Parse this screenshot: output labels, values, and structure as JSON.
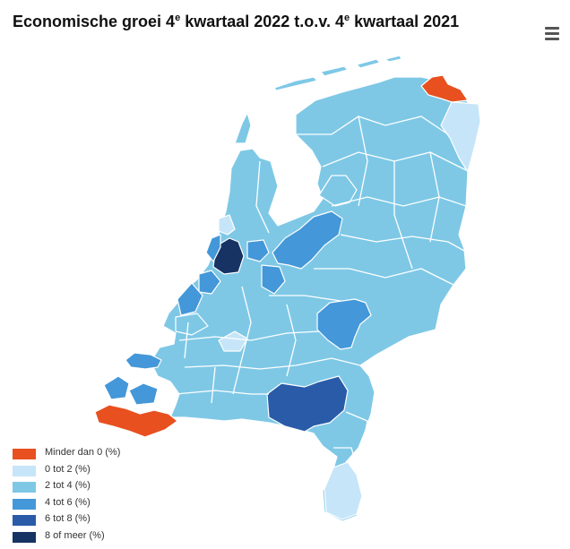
{
  "title": {
    "part1": "Economische groei 4",
    "sup1": "e",
    "part2": " kwartaal 2022 t.o.v. 4",
    "sup2": "e",
    "part3": " kwartaal 2021"
  },
  "menu_icon": "hamburger-menu-icon",
  "colors": {
    "minder_dan_0": "#e8501f",
    "0_tot_2": "#c6e5f8",
    "2_tot_4": "#7ec8e6",
    "4_tot_6": "#4497d8",
    "6_tot_8": "#2a5ba8",
    "8_of_meer": "#173364",
    "border": "#ffffff"
  },
  "legend": [
    {
      "label": "Minder dan 0 (%)",
      "color": "#e8501f"
    },
    {
      "label": "0 tot 2 (%)",
      "color": "#c6e5f8"
    },
    {
      "label": "2 tot 4 (%)",
      "color": "#7ec8e6"
    },
    {
      "label": "4 tot 6 (%)",
      "color": "#4497d8"
    },
    {
      "label": "6 tot 8 (%)",
      "color": "#2a5ba8"
    },
    {
      "label": "8 of meer (%)",
      "color": "#173364"
    }
  ]
}
